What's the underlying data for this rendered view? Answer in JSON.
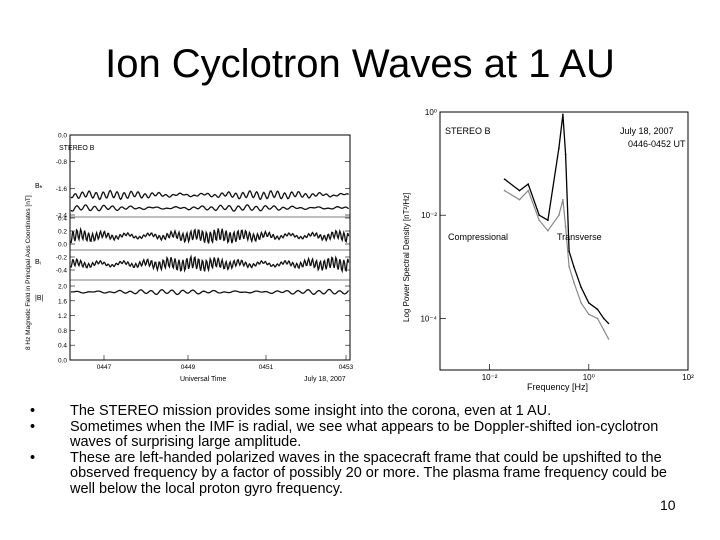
{
  "slide": {
    "title": "Ion Cyclotron Waves at 1 AU",
    "bullets": [
      "The STEREO mission provides some insight into the corona, even at 1 AU.",
      "Sometimes when the IMF is radial, we see what appears to be Doppler-shifted ion-cyclotron waves of surprising large amplitude.",
      "These are left-handed polarized waves in the spacecraft frame that could be upshifted to the observed frequency by a factor of possibly 20 or more. The plasma frame frequency could be well below the local proton gyro frequency."
    ],
    "bullet_marker": "•",
    "page_number": "10"
  },
  "chart_data": [
    {
      "type": "line",
      "title": "STEREO B",
      "xlabel": "Universal Time",
      "ylabel": "8 Hz Magnetic Field in Principal Axis Coordinates [nT]",
      "date_label": "July 18, 2007",
      "x_ticks": [
        "0447",
        "0449",
        "0451",
        "0453"
      ],
      "panels": [
        {
          "component": "Bₕ",
          "tick_labels": [
            "0.0",
            "-0.8",
            "-1.6",
            "-2.4"
          ],
          "ylim": [
            -2.4,
            0.0
          ]
        },
        {
          "component": "Bᵢ",
          "tick_labels": [
            "0.4",
            "0.2",
            "0.0",
            "-0.2",
            "-0.4"
          ],
          "ylim": [
            -0.4,
            0.4
          ]
        },
        {
          "component": "|B|",
          "tick_labels": [
            "2.0",
            "1.6",
            "1.2",
            "0.8",
            "0.4",
            "0.0"
          ],
          "ylim": [
            0.0,
            2.0
          ]
        }
      ],
      "panel_labels": [
        "Bₕ",
        "Bᵢ",
        "|B|"
      ]
    },
    {
      "type": "line",
      "title": "STEREO B",
      "date": "July 18, 2007",
      "time_range": "0446-0452 UT",
      "xlabel": "Frequency [Hz]",
      "ylabel": "Log Power Spectral Density [nT²/Hz]",
      "xscale": "log",
      "yscale": "log",
      "x_ticks": [
        "10⁻²",
        "10⁰",
        "10²"
      ],
      "y_ticks": [
        "10⁰",
        "10⁻²",
        "10⁻⁴"
      ],
      "xlim": [
        0.001,
        100
      ],
      "ylim": [
        1e-05,
        1
      ],
      "series": [
        {
          "name": "Transverse",
          "x": [
            0.02,
            0.04,
            0.06,
            0.1,
            0.15,
            0.25,
            0.3,
            0.34,
            0.4,
            0.5,
            0.7,
            1.0,
            1.5,
            2.0,
            2.5
          ],
          "y": [
            0.05,
            0.03,
            0.04,
            0.01,
            0.008,
            0.2,
            0.9,
            0.15,
            0.002,
            0.001,
            0.0004,
            0.0002,
            0.00015,
            0.0001,
            8e-05
          ]
        },
        {
          "name": "Compressional",
          "x": [
            0.02,
            0.04,
            0.06,
            0.1,
            0.15,
            0.25,
            0.3,
            0.34,
            0.4,
            0.5,
            0.7,
            1.0,
            1.5,
            2.0,
            2.5
          ],
          "y": [
            0.03,
            0.02,
            0.03,
            0.008,
            0.005,
            0.01,
            0.02,
            0.006,
            0.001,
            0.0005,
            0.0002,
            0.00012,
            0.0001,
            6e-05,
            4e-05
          ]
        }
      ]
    }
  ]
}
